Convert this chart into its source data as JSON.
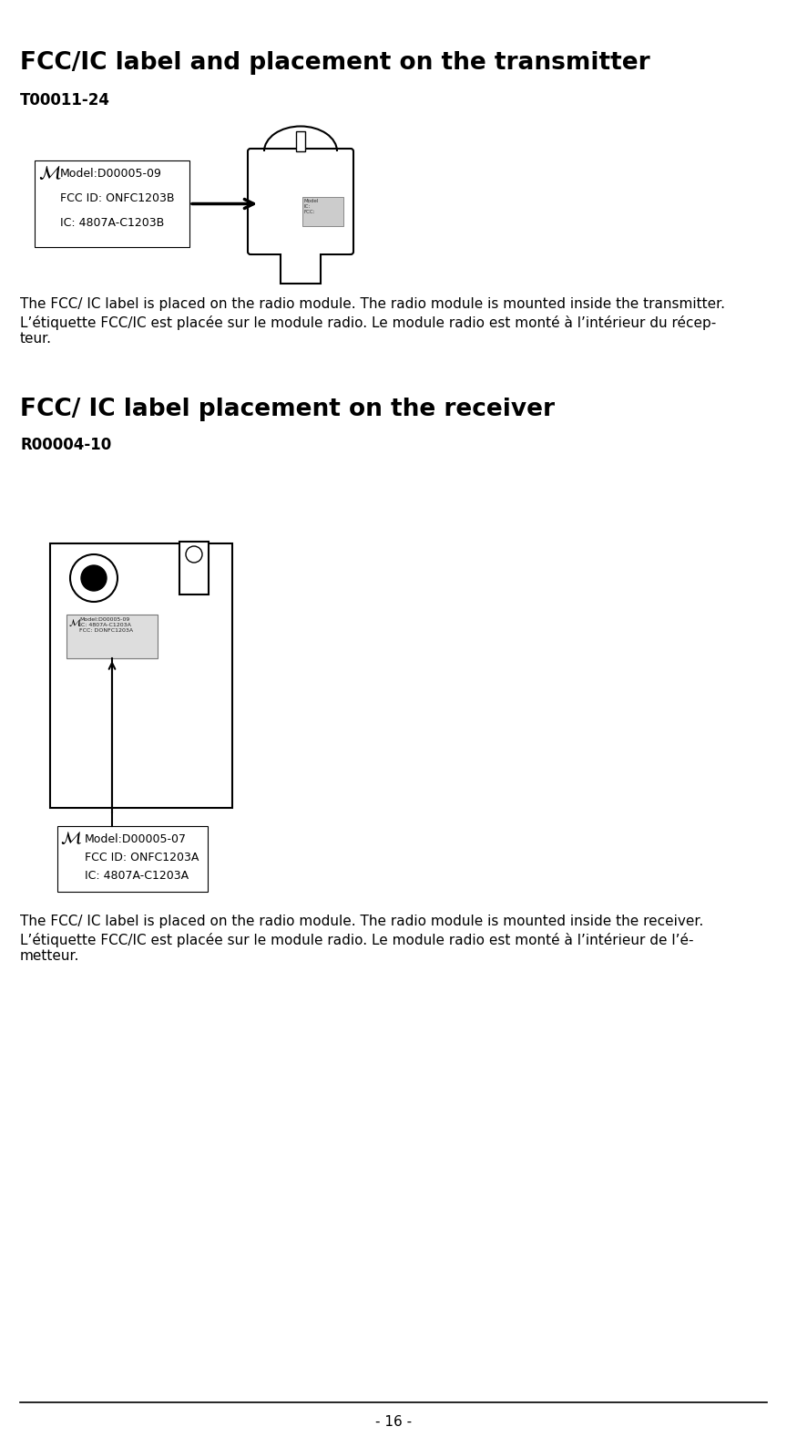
{
  "bg_color": "#ffffff",
  "title1": "FCC/IC label and placement on the transmitter",
  "ref1": "T00011-24",
  "label1_lines": [
    "Model:D00005-09",
    "FCC ID: ONFC1203B",
    "IC: 4807A-C1203B"
  ],
  "desc1_en": "The FCC/ IC label is placed on the radio module. The radio module is mounted inside the transmitter.",
  "desc1_fr": "L’étiquette FCC/IC est placée sur le module radio. Le module radio est monté à l’intérieur du récep-\nteur.",
  "title2": "FCC/ IC label placement on the receiver",
  "ref2": "R00004-10",
  "label2_lines": [
    "Model:D00005-07",
    "FCC ID: ONFC1203A",
    "IC: 4807A-C1203A"
  ],
  "desc2_en": "The FCC/ IC label is placed on the radio module. The radio module is mounted inside the receiver.",
  "desc2_fr": "L’étiquette FCC/IC est placée sur le module radio. Le module radio est monté à l’intérieur de l’é-\nmetteur.",
  "page_number": "- 16 -",
  "text_color": "#000000",
  "border_color": "#000000"
}
